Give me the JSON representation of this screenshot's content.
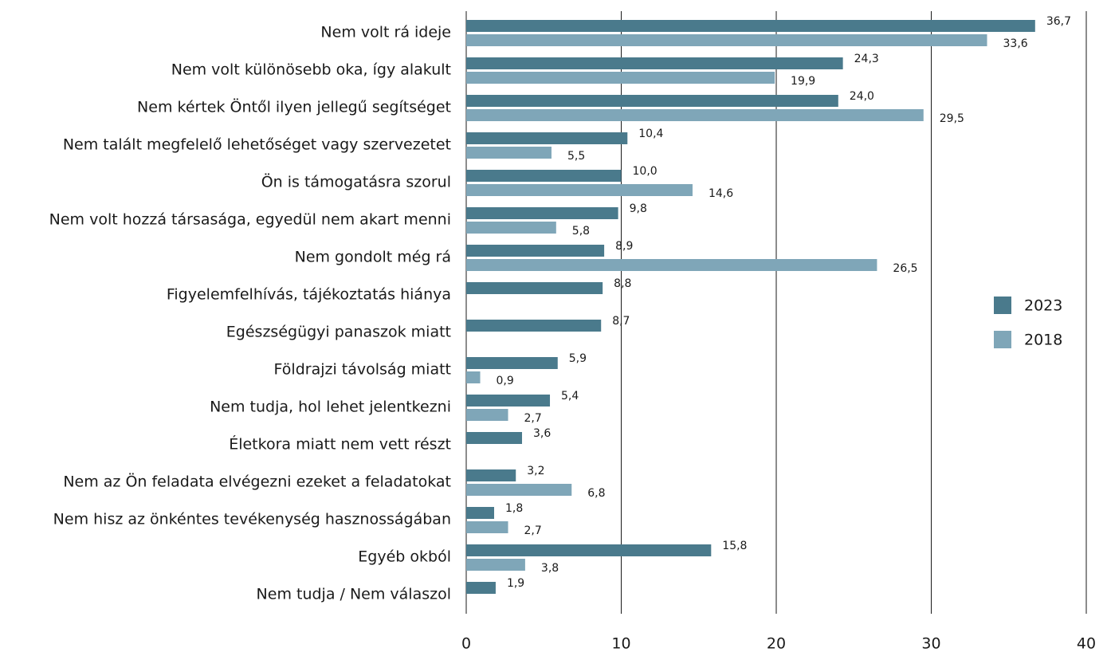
{
  "chart_data": {
    "type": "bar",
    "orientation": "horizontal",
    "categories": [
      "Nem volt rá ideje",
      "Nem volt különösebb oka, így alakult",
      "Nem kértek Öntől ilyen jellegű segítséget",
      "Nem talált megfelelő lehetőséget vagy szervezetet",
      "Ön is támogatásra szorul",
      "Nem volt hozzá társasága, egyedül nem akart menni",
      "Nem gondolt még rá",
      "Figyelemfelhívás, tájékoztatás hiánya",
      "Egészségügyi panaszok miatt",
      "Földrajzi távolság miatt",
      "Nem tudja, hol lehet jelentkezni",
      "Életkora miatt nem vett részt",
      "Nem az Ön feladata elvégezni ezeket a feladatokat",
      "Nem hisz az önkéntes tevékenység hasznosságában",
      "Egyéb okból",
      "Nem tudja / Nem válaszol"
    ],
    "series": [
      {
        "name": "2023",
        "color": "#4a7a8c",
        "values": [
          36.7,
          24.3,
          24.0,
          10.4,
          10.0,
          9.8,
          8.9,
          8.8,
          8.7,
          5.9,
          5.4,
          3.6,
          3.2,
          1.8,
          15.8,
          1.9
        ],
        "value_labels": [
          "36,7",
          "24,3",
          "24,0",
          "10,4",
          "10,0",
          "9,8",
          "8,9",
          "8,8",
          "8,7",
          "5,9",
          "5,4",
          "3,6",
          "3,2",
          "1,8",
          "15,8",
          "1,9"
        ]
      },
      {
        "name": "2018",
        "color": "#7fa6b8",
        "values": [
          33.6,
          19.9,
          29.5,
          5.5,
          14.6,
          5.8,
          26.5,
          null,
          null,
          0.9,
          2.7,
          null,
          6.8,
          2.7,
          3.8,
          null
        ],
        "value_labels": [
          "33,6",
          "19,9",
          "29,5",
          "5,5",
          "14,6",
          "5,8",
          "26,5",
          null,
          null,
          "0,9",
          "2,7",
          null,
          "6,8",
          "2,7",
          "3,8",
          null
        ]
      }
    ],
    "xlim": [
      0,
      40
    ],
    "xticks": [
      0,
      10,
      20,
      30,
      40
    ],
    "grid": true,
    "legend": "right"
  }
}
